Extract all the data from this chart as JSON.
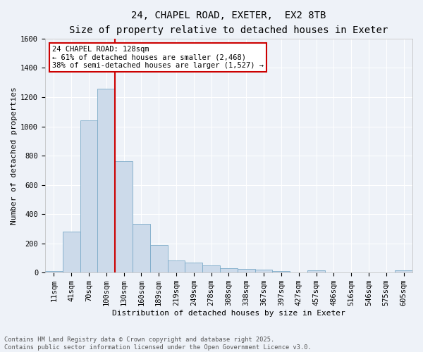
{
  "title_line1": "24, CHAPEL ROAD, EXETER,  EX2 8TB",
  "title_line2": "Size of property relative to detached houses in Exeter",
  "xlabel": "Distribution of detached houses by size in Exeter",
  "ylabel": "Number of detached properties",
  "categories": [
    "11sqm",
    "41sqm",
    "70sqm",
    "100sqm",
    "130sqm",
    "160sqm",
    "189sqm",
    "219sqm",
    "249sqm",
    "278sqm",
    "308sqm",
    "338sqm",
    "367sqm",
    "397sqm",
    "427sqm",
    "457sqm",
    "486sqm",
    "516sqm",
    "546sqm",
    "575sqm",
    "605sqm"
  ],
  "values": [
    10,
    280,
    1040,
    1260,
    760,
    335,
    190,
    85,
    70,
    50,
    30,
    25,
    20,
    10,
    0,
    15,
    0,
    0,
    0,
    0,
    15
  ],
  "bar_color": "#ccdaea",
  "bar_edge_color": "#7aaac8",
  "red_line_index": 4,
  "annotation_text": "24 CHAPEL ROAD: 128sqm\n← 61% of detached houses are smaller (2,468)\n38% of semi-detached houses are larger (1,527) →",
  "annotation_box_color": "#ffffff",
  "annotation_box_edge": "#cc0000",
  "ylim": [
    0,
    1600
  ],
  "yticks": [
    0,
    200,
    400,
    600,
    800,
    1000,
    1200,
    1400,
    1600
  ],
  "footer_line1": "Contains HM Land Registry data © Crown copyright and database right 2025.",
  "footer_line2": "Contains public sector information licensed under the Open Government Licence v3.0.",
  "background_color": "#eef2f8",
  "grid_color": "#ffffff",
  "title_fontsize": 10,
  "subtitle_fontsize": 9,
  "axis_label_fontsize": 8,
  "tick_fontsize": 7.5
}
